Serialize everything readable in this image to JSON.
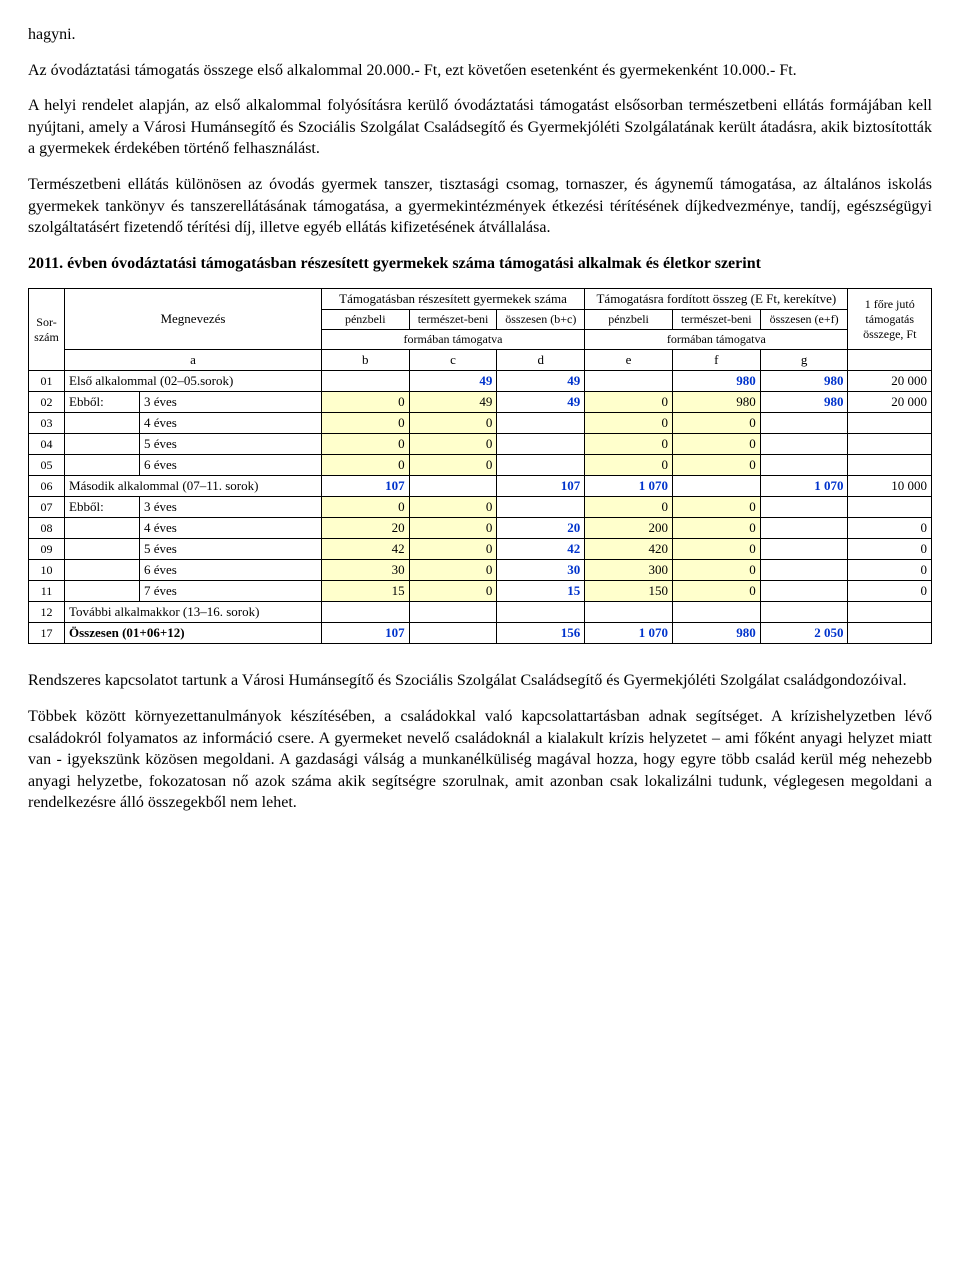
{
  "paragraphs": {
    "p0": "hagyni.",
    "p1": "Az óvodáztatási támogatás összege első alkalommal 20.000.- Ft, ezt követően esetenként és gyermekenként 10.000.- Ft.",
    "p2": "A helyi rendelet alapján, az első alkalommal folyósításra kerülő óvodáztatási támogatást elsősorban természetbeni ellátás formájában kell nyújtani, amely a Városi Humánsegítő és Szociális Szolgálat Családsegítő és Gyermekjóléti Szolgálatának került átadásra, akik biztosították a gyermekek érdekében történő felhasználást.",
    "p3": "Természetbeni ellátás különösen az óvodás gyermek tanszer, tisztasági csomag, tornaszer, és ágynemű támogatása, az általános iskolás gyermekek tankönyv és tanszerellátásának támogatása, a gyermekintézmények étkezési térítésének díjkedvezménye, tandíj, egészségügyi szolgáltatásért fizetendő térítési díj, illetve egyéb ellátás kifizetésének átvállalása.",
    "h1": "2011. évben óvodáztatási támogatásban részesített gyermekek száma támogatási alkalmak és életkor szerint",
    "p4": "Rendszeres kapcsolatot tartunk a Városi Humánsegítő és Szociális Szolgálat Családsegítő és Gyermekjóléti Szolgálat családgondozóival.",
    "p5": "Többek között környezettanulmányok készítésében, a családokkal való kapcsolattartásban adnak segítséget. A krízishelyzetben lévő családokról folyamatos az információ csere. A gyermeket nevelő családoknál a kialakult krízis helyzetet – ami főként anyagi helyzet miatt van - igyekszünk közösen megoldani. A gazdasági válság a munkanélküliség magával hozza, hogy egyre több család kerül még nehezebb anyagi helyzetbe, fokozatosan nő azok száma akik segítségre szorulnak, amit azonban csak lokalizálni tudunk, véglegesen megoldani a rendelkezésre álló összegekből nem lehet."
  },
  "table": {
    "headers": {
      "sorszam": "Sor-szám",
      "megnevezes": "Megnevezés",
      "group_left": "Támogatásban részesített gyermekek száma",
      "group_right": "Támogatásra fordított összeg (E Ft, kerekítve)",
      "penzbeli": "pénzbeli",
      "termeszet": "természet-beni",
      "osszesen_bc": "összesen (b+c)",
      "osszesen_ef": "összesen (e+f)",
      "formaban": "formában támogatva",
      "perfo": "1 főre jutó támogatás összege, Ft",
      "a": "a",
      "b": "b",
      "c": "c",
      "d": "d",
      "e": "e",
      "f": "f",
      "g": "g"
    },
    "rows": [
      {
        "n": "01",
        "label": "Első alkalommal (02–05.sorok)",
        "sub": "",
        "b": "",
        "c": "49",
        "d": "49",
        "e": "",
        "f": "980",
        "g": "980",
        "h": "20 000",
        "hl": [
          false,
          false,
          false,
          false,
          false,
          false
        ],
        "blue": [
          false,
          true,
          true,
          false,
          true,
          true,
          false
        ]
      },
      {
        "n": "02",
        "label": "Ebből:",
        "sub": "3 éves",
        "b": "0",
        "c": "49",
        "d": "49",
        "e": "0",
        "f": "980",
        "g": "980",
        "h": "20 000",
        "hl": [
          true,
          true,
          false,
          true,
          true,
          false
        ],
        "blue": [
          false,
          false,
          true,
          false,
          false,
          true,
          false
        ]
      },
      {
        "n": "03",
        "label": "",
        "sub": "4 éves",
        "b": "0",
        "c": "0",
        "d": "",
        "e": "0",
        "f": "0",
        "g": "",
        "h": "",
        "hl": [
          true,
          true,
          false,
          true,
          true,
          false
        ],
        "blue": [
          false,
          false,
          false,
          false,
          false,
          false,
          false
        ]
      },
      {
        "n": "04",
        "label": "",
        "sub": "5 éves",
        "b": "0",
        "c": "0",
        "d": "",
        "e": "0",
        "f": "0",
        "g": "",
        "h": "",
        "hl": [
          true,
          true,
          false,
          true,
          true,
          false
        ],
        "blue": [
          false,
          false,
          false,
          false,
          false,
          false,
          false
        ]
      },
      {
        "n": "05",
        "label": "",
        "sub": "6 éves",
        "b": "0",
        "c": "0",
        "d": "",
        "e": "0",
        "f": "0",
        "g": "",
        "h": "",
        "hl": [
          true,
          true,
          false,
          true,
          true,
          false
        ],
        "blue": [
          false,
          false,
          false,
          false,
          false,
          false,
          false
        ]
      },
      {
        "n": "06",
        "label": "Második alkalommal (07–11. sorok)",
        "sub": "",
        "b": "107",
        "c": "",
        "d": "107",
        "e": "1 070",
        "f": "",
        "g": "1 070",
        "h": "10 000",
        "hl": [
          false,
          false,
          false,
          false,
          false,
          false
        ],
        "blue": [
          true,
          false,
          true,
          true,
          false,
          true,
          false
        ]
      },
      {
        "n": "07",
        "label": "Ebből:",
        "sub": "3 éves",
        "b": "0",
        "c": "0",
        "d": "",
        "e": "0",
        "f": "0",
        "g": "",
        "h": "",
        "hl": [
          true,
          true,
          false,
          true,
          true,
          false
        ],
        "blue": [
          false,
          false,
          false,
          false,
          false,
          false,
          false
        ]
      },
      {
        "n": "08",
        "label": "",
        "sub": "4 éves",
        "b": "20",
        "c": "0",
        "d": "20",
        "e": "200",
        "f": "0",
        "g": "",
        "h": "0",
        "hl": [
          true,
          true,
          false,
          true,
          true,
          false
        ],
        "blue": [
          false,
          false,
          true,
          false,
          false,
          false,
          false
        ]
      },
      {
        "n": "09",
        "label": "",
        "sub": "5 éves",
        "b": "42",
        "c": "0",
        "d": "42",
        "e": "420",
        "f": "0",
        "g": "",
        "h": "0",
        "hl": [
          true,
          true,
          false,
          true,
          true,
          false
        ],
        "blue": [
          false,
          false,
          true,
          false,
          false,
          false,
          false
        ]
      },
      {
        "n": "10",
        "label": "",
        "sub": "6 éves",
        "b": "30",
        "c": "0",
        "d": "30",
        "e": "300",
        "f": "0",
        "g": "",
        "h": "0",
        "hl": [
          true,
          true,
          false,
          true,
          true,
          false
        ],
        "blue": [
          false,
          false,
          true,
          false,
          false,
          false,
          false
        ]
      },
      {
        "n": "11",
        "label": "",
        "sub": "7 éves",
        "b": "15",
        "c": "0",
        "d": "15",
        "e": "150",
        "f": "0",
        "g": "",
        "h": "0",
        "hl": [
          true,
          true,
          false,
          true,
          true,
          false
        ],
        "blue": [
          false,
          false,
          true,
          false,
          false,
          false,
          false
        ]
      },
      {
        "n": "12",
        "label": "További alkalmakkor (13–16. sorok)",
        "sub": "",
        "b": "",
        "c": "",
        "d": "",
        "e": "",
        "f": "",
        "g": "",
        "h": "",
        "hl": [
          false,
          false,
          false,
          false,
          false,
          false
        ],
        "blue": [
          false,
          false,
          false,
          false,
          false,
          false,
          false
        ]
      },
      {
        "n": "17",
        "label": "Összesen (01+06+12)",
        "sub": "",
        "b": "107",
        "c": "",
        "d": "156",
        "e": "1 070",
        "f": "980",
        "g": "2 050",
        "h": "",
        "hl": [
          false,
          false,
          false,
          false,
          false,
          false
        ],
        "blue": [
          true,
          false,
          true,
          true,
          true,
          true,
          false
        ],
        "bold": true
      }
    ],
    "colwidths": {
      "n": 28,
      "label": 70,
      "sub": 170,
      "num": 82,
      "h": 78
    },
    "colors": {
      "hl_bg": "#ffffcc",
      "blue": "#0033cc",
      "border": "#000000"
    }
  }
}
